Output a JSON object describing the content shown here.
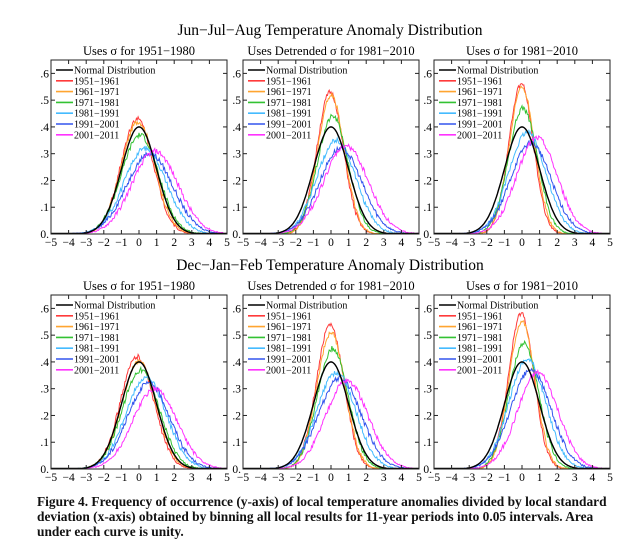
{
  "figure": {
    "row_titles": [
      "Jun−Jul−Aug Temperature Anomaly Distribution",
      "Dec−Jan−Feb Temperature Anomaly Distribution"
    ],
    "caption": "Figure 4.  Frequency of occurrence (y-axis) of local temperature anomalies divided by local standard deviation (x-axis) obtained by binning all local results for 11-year periods into 0.05 intervals.  Area under each curve is unity."
  },
  "chart_data": [
    {
      "type": "line",
      "row": "Jun−Jul−Aug",
      "title": "Uses σ for 1951−1980",
      "xlabel": "",
      "ylabel": "",
      "xlim": [
        -5,
        5
      ],
      "ylim": [
        0,
        0.65
      ],
      "xticks": [
        "−5",
        "−4",
        "−3",
        "−2",
        "−1",
        "0",
        "1",
        "2",
        "3",
        "4",
        "5"
      ],
      "yticks": [
        "0.",
        ".1",
        ".2",
        ".3",
        ".4",
        ".5",
        ".6"
      ],
      "legend": "top-left",
      "series": [
        {
          "name": "Normal Distribution",
          "color": "#000000",
          "mean": 0.0,
          "sd": 1.0,
          "peak": 0.4
        },
        {
          "name": "1951−1961",
          "color": "#ff3b3b",
          "mean": -0.1,
          "sd": 0.93,
          "peak": 0.43
        },
        {
          "name": "1961−1971",
          "color": "#ffa530",
          "mean": -0.05,
          "sd": 0.95,
          "peak": 0.42
        },
        {
          "name": "1971−1981",
          "color": "#33c233",
          "mean": 0.05,
          "sd": 1.05,
          "peak": 0.37
        },
        {
          "name": "1981−1991",
          "color": "#44bbff",
          "mean": 0.35,
          "sd": 1.2,
          "peak": 0.32
        },
        {
          "name": "1991−2001",
          "color": "#3355ee",
          "mean": 0.6,
          "sd": 1.3,
          "peak": 0.3
        },
        {
          "name": "2001−2011",
          "color": "#ff33ff",
          "mean": 0.9,
          "sd": 1.3,
          "peak": 0.31
        }
      ]
    },
    {
      "type": "line",
      "row": "Jun−Jul−Aug",
      "title": "Uses Detrended σ for 1981−2010",
      "xlabel": "",
      "ylabel": "",
      "xlim": [
        -5,
        5
      ],
      "ylim": [
        0,
        0.65
      ],
      "xticks": [
        "−5",
        "−4",
        "−3",
        "−2",
        "−1",
        "0",
        "1",
        "2",
        "3",
        "4",
        "5"
      ],
      "yticks": [
        "0.",
        ".1",
        ".2",
        ".3",
        ".4",
        ".5",
        ".6"
      ],
      "legend": "top-left",
      "series": [
        {
          "name": "Normal Distribution",
          "color": "#000000",
          "mean": 0.0,
          "sd": 1.0,
          "peak": 0.4
        },
        {
          "name": "1951−1961",
          "color": "#ff3b3b",
          "mean": -0.05,
          "sd": 0.75,
          "peak": 0.53
        },
        {
          "name": "1961−1971",
          "color": "#ffa530",
          "mean": 0.0,
          "sd": 0.76,
          "peak": 0.52
        },
        {
          "name": "1971−1981",
          "color": "#33c233",
          "mean": 0.1,
          "sd": 0.87,
          "peak": 0.44
        },
        {
          "name": "1981−1991",
          "color": "#44bbff",
          "mean": 0.3,
          "sd": 1.1,
          "peak": 0.35
        },
        {
          "name": "1991−2001",
          "color": "#3355ee",
          "mean": 0.55,
          "sd": 1.2,
          "peak": 0.32
        },
        {
          "name": "2001−2011",
          "color": "#ff33ff",
          "mean": 0.85,
          "sd": 1.25,
          "peak": 0.33
        }
      ]
    },
    {
      "type": "line",
      "row": "Jun−Jul−Aug",
      "title": "Uses σ for 1981−2010",
      "xlabel": "",
      "ylabel": "",
      "xlim": [
        -5,
        5
      ],
      "ylim": [
        0,
        0.65
      ],
      "xticks": [
        "−5",
        "−4",
        "−3",
        "−2",
        "−1",
        "0",
        "1",
        "2",
        "3",
        "4",
        "5"
      ],
      "yticks": [
        "0.",
        ".1",
        ".2",
        ".3",
        ".4",
        ".5",
        ".6"
      ],
      "legend": "top-left",
      "series": [
        {
          "name": "Normal Distribution",
          "color": "#000000",
          "mean": 0.0,
          "sd": 1.0,
          "peak": 0.4
        },
        {
          "name": "1951−1961",
          "color": "#ff3b3b",
          "mean": -0.05,
          "sd": 0.7,
          "peak": 0.56
        },
        {
          "name": "1961−1971",
          "color": "#ffa530",
          "mean": 0.0,
          "sd": 0.72,
          "peak": 0.55
        },
        {
          "name": "1971−1981",
          "color": "#33c233",
          "mean": 0.05,
          "sd": 0.82,
          "peak": 0.47
        },
        {
          "name": "1981−1991",
          "color": "#44bbff",
          "mean": 0.3,
          "sd": 1.05,
          "peak": 0.38
        },
        {
          "name": "1991−2001",
          "color": "#3355ee",
          "mean": 0.5,
          "sd": 1.15,
          "peak": 0.34
        },
        {
          "name": "2001−2011",
          "color": "#ff33ff",
          "mean": 0.85,
          "sd": 1.15,
          "peak": 0.36
        }
      ]
    },
    {
      "type": "line",
      "row": "Dec−Jan−Feb",
      "title": "Uses σ for 1951−1980",
      "xlabel": "",
      "ylabel": "",
      "xlim": [
        -5,
        5
      ],
      "ylim": [
        0,
        0.65
      ],
      "xticks": [
        "−5",
        "−4",
        "−3",
        "−2",
        "−1",
        "0",
        "1",
        "2",
        "3",
        "4",
        "5"
      ],
      "yticks": [
        "0.",
        ".1",
        ".2",
        ".3",
        ".4",
        ".5",
        ".6"
      ],
      "legend": "top-left",
      "series": [
        {
          "name": "Normal Distribution",
          "color": "#000000",
          "mean": 0.0,
          "sd": 1.0,
          "peak": 0.4
        },
        {
          "name": "1951−1961",
          "color": "#ff3b3b",
          "mean": -0.1,
          "sd": 0.95,
          "peak": 0.42
        },
        {
          "name": "1961−1971",
          "color": "#ffa530",
          "mean": 0.0,
          "sd": 0.97,
          "peak": 0.4
        },
        {
          "name": "1971−1981",
          "color": "#33c233",
          "mean": 0.1,
          "sd": 1.05,
          "peak": 0.37
        },
        {
          "name": "1981−1991",
          "color": "#44bbff",
          "mean": 0.4,
          "sd": 1.15,
          "peak": 0.34
        },
        {
          "name": "1991−2001",
          "color": "#3355ee",
          "mean": 0.55,
          "sd": 1.2,
          "peak": 0.32
        },
        {
          "name": "2001−2011",
          "color": "#ff33ff",
          "mean": 0.9,
          "sd": 1.25,
          "peak": 0.3
        }
      ]
    },
    {
      "type": "line",
      "row": "Dec−Jan−Feb",
      "title": "Uses Detrended σ for 1981−2010",
      "xlabel": "",
      "ylabel": "",
      "xlim": [
        -5,
        5
      ],
      "ylim": [
        0,
        0.65
      ],
      "xticks": [
        "−5",
        "−4",
        "−3",
        "−2",
        "−1",
        "0",
        "1",
        "2",
        "3",
        "4",
        "5"
      ],
      "yticks": [
        "0.",
        ".1",
        ".2",
        ".3",
        ".4",
        ".5",
        ".6"
      ],
      "legend": "top-left",
      "series": [
        {
          "name": "Normal Distribution",
          "color": "#000000",
          "mean": 0.0,
          "sd": 1.0,
          "peak": 0.4
        },
        {
          "name": "1951−1961",
          "color": "#ff3b3b",
          "mean": -0.05,
          "sd": 0.78,
          "peak": 0.54
        },
        {
          "name": "1961−1971",
          "color": "#ffa530",
          "mean": 0.0,
          "sd": 0.8,
          "peak": 0.51
        },
        {
          "name": "1971−1981",
          "color": "#33c233",
          "mean": 0.1,
          "sd": 0.88,
          "peak": 0.45
        },
        {
          "name": "1981−1991",
          "color": "#44bbff",
          "mean": 0.3,
          "sd": 1.1,
          "peak": 0.36
        },
        {
          "name": "1991−2001",
          "color": "#3355ee",
          "mean": 0.5,
          "sd": 1.2,
          "peak": 0.34
        },
        {
          "name": "2001−2011",
          "color": "#ff33ff",
          "mean": 0.9,
          "sd": 1.2,
          "peak": 0.33
        }
      ]
    },
    {
      "type": "line",
      "row": "Dec−Jan−Feb",
      "title": "Uses σ for 1981−2010",
      "xlabel": "",
      "ylabel": "",
      "xlim": [
        -5,
        5
      ],
      "ylim": [
        0,
        0.65
      ],
      "xticks": [
        "−5",
        "−4",
        "−3",
        "−2",
        "−1",
        "0",
        "1",
        "2",
        "3",
        "4",
        "5"
      ],
      "yticks": [
        "0.",
        ".1",
        ".2",
        ".3",
        ".4",
        ".5",
        ".6"
      ],
      "legend": "top-left",
      "series": [
        {
          "name": "Normal Distribution",
          "color": "#000000",
          "mean": 0.0,
          "sd": 1.0,
          "peak": 0.4
        },
        {
          "name": "1951−1961",
          "color": "#ff3b3b",
          "mean": -0.05,
          "sd": 0.72,
          "peak": 0.58
        },
        {
          "name": "1961−1971",
          "color": "#ffa530",
          "mean": 0.0,
          "sd": 0.74,
          "peak": 0.55
        },
        {
          "name": "1971−1981",
          "color": "#33c233",
          "mean": 0.1,
          "sd": 0.84,
          "peak": 0.47
        },
        {
          "name": "1981−1991",
          "color": "#44bbff",
          "mean": 0.3,
          "sd": 1.05,
          "peak": 0.41
        },
        {
          "name": "1991−2001",
          "color": "#3355ee",
          "mean": 0.5,
          "sd": 1.15,
          "peak": 0.37
        },
        {
          "name": "2001−2011",
          "color": "#ff33ff",
          "mean": 0.9,
          "sd": 1.15,
          "peak": 0.36
        }
      ]
    }
  ]
}
